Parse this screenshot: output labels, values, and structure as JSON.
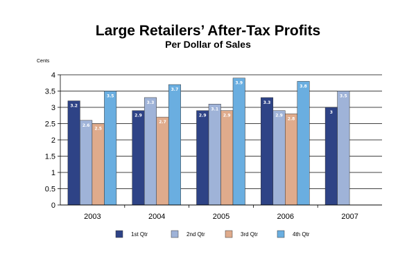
{
  "chart_data": {
    "type": "bar",
    "title": "Large Retailers’ After-Tax Profits",
    "subtitle": "Per Dollar of Sales",
    "ylabel": "Cents",
    "ylim": [
      0,
      4
    ],
    "yticks": [
      "0",
      "0.5",
      "1",
      "1.5",
      "2",
      "2.5",
      "3",
      "3.5",
      "4"
    ],
    "grid": true,
    "legend_position": "bottom",
    "categories": [
      "2003",
      "2004",
      "2005",
      "2006",
      "2007"
    ],
    "series": [
      {
        "name": "1st Qtr",
        "color": "#2e4386",
        "values": [
          3.2,
          2.9,
          2.9,
          3.3,
          3.0
        ],
        "labels": [
          "3.2",
          "2.9",
          "2.9",
          "3.3",
          "3"
        ]
      },
      {
        "name": "2nd Qtr",
        "color": "#9fb3d8",
        "values": [
          2.6,
          3.3,
          3.1,
          2.9,
          3.5
        ],
        "labels": [
          "2.6",
          "3.3",
          "3.1",
          "2.9",
          "3.5"
        ]
      },
      {
        "name": "3rd Qtr",
        "color": "#dfab8c",
        "values": [
          2.5,
          2.7,
          2.9,
          2.8,
          null
        ],
        "labels": [
          "2.5",
          "2.7",
          "2.9",
          "2.8",
          ""
        ]
      },
      {
        "name": "4th Qtr",
        "color": "#6aaee0",
        "values": [
          3.5,
          3.7,
          3.9,
          3.8,
          null
        ],
        "labels": [
          "3.5",
          "3.7",
          "3.9",
          "3.8",
          ""
        ]
      }
    ]
  }
}
